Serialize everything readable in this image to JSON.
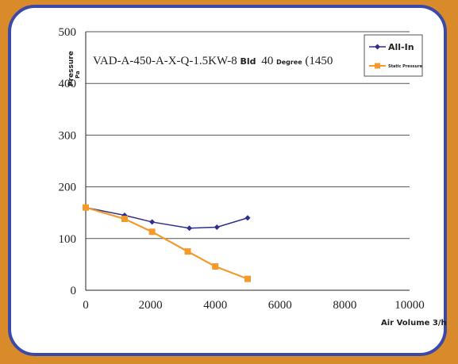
{
  "chart_data": {
    "type": "line",
    "title_main": "VAD-A-450-A-X-Q-1.5KW-8",
    "title_part2": "Bld",
    "title_part3": "40",
    "title_part4": "Degree",
    "title_part5": "(1450",
    "ylabel": "Pressure",
    "yunit": "Pa",
    "xlabel": "Air Volume 3/h",
    "xlim": [
      0,
      10000
    ],
    "ylim": [
      0,
      500
    ],
    "xticks": [
      "0",
      "2000",
      "4000",
      "6000",
      "8000",
      "10000"
    ],
    "yticks": [
      "0",
      "100",
      "200",
      "300",
      "400",
      "500"
    ],
    "grid": "horizontal",
    "legend_position": "top-right",
    "series": [
      {
        "name": "All-In",
        "color": "#2e2f8a",
        "marker": "diamond",
        "x": [
          0,
          1200,
          2050,
          3200,
          4050,
          5000
        ],
        "y": [
          160,
          145,
          132,
          120,
          122,
          140
        ]
      },
      {
        "name": "Static Pressure",
        "color": "#f39a2b",
        "marker": "square",
        "x": [
          0,
          1200,
          2050,
          3150,
          4000,
          5000
        ],
        "y": [
          160,
          138,
          113,
          75,
          46,
          22
        ]
      }
    ]
  }
}
